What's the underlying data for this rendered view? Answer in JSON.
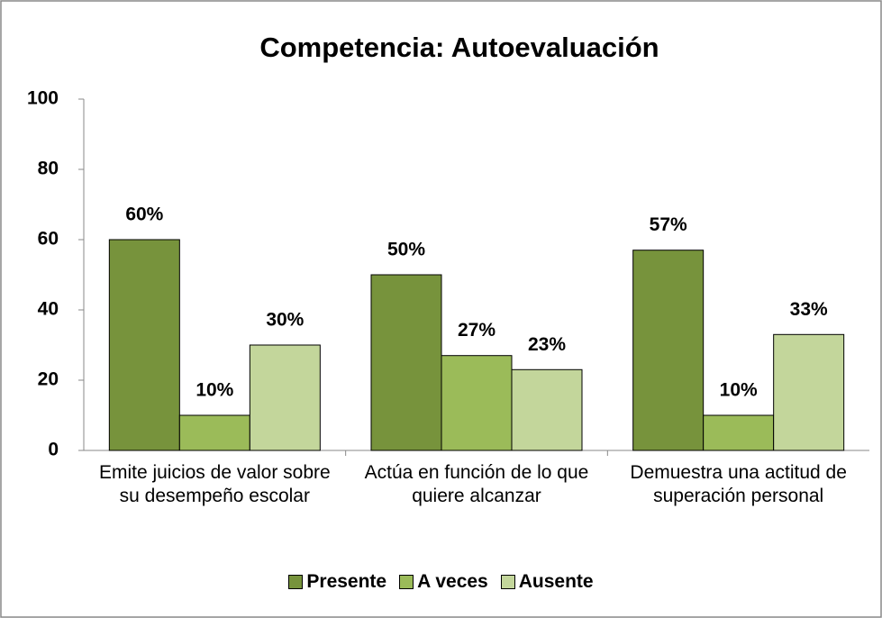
{
  "chart_data": {
    "type": "bar",
    "title": "Competencia: Autoevaluación",
    "categories": [
      "Emite juicios de valor sobre su desempeño escolar",
      "Actúa en función de lo que quiere alcanzar",
      "Demuestra una actitud de superación personal"
    ],
    "series": [
      {
        "name": "Presente",
        "color": "#77933c",
        "values": [
          60,
          50,
          57
        ],
        "value_labels": [
          "60%",
          "50%",
          "57%"
        ]
      },
      {
        "name": "A veces",
        "color": "#9bbb59",
        "values": [
          10,
          27,
          10
        ],
        "value_labels": [
          "10%",
          "27%",
          "10%"
        ]
      },
      {
        "name": "Ausente",
        "color": "#c3d69b",
        "values": [
          30,
          23,
          33
        ],
        "value_labels": [
          "30%",
          "23%",
          "33%"
        ]
      }
    ],
    "ylim": [
      0,
      100
    ],
    "yticks": [
      0,
      20,
      40,
      60,
      80,
      100
    ],
    "legend": "bottom"
  }
}
